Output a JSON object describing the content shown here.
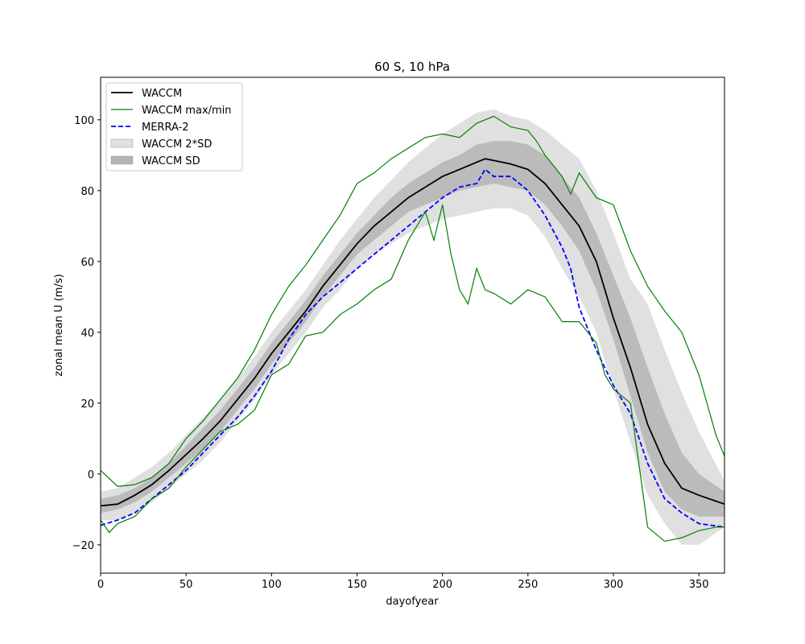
{
  "chart_data": {
    "type": "line",
    "title": "60 S, 10 hPa",
    "xlabel": "dayofyear",
    "ylabel": "zonal mean U (m/s)",
    "xlim": [
      0,
      365
    ],
    "ylim": [
      -28,
      112
    ],
    "xticks": [
      0,
      50,
      100,
      150,
      200,
      250,
      300,
      350
    ],
    "yticks": [
      -20,
      0,
      20,
      40,
      60,
      80,
      100
    ],
    "grid": false,
    "legend_position": "top-left",
    "series": [
      {
        "name": "WACCM",
        "style": "solid",
        "color": "#000000",
        "x": [
          0,
          10,
          20,
          30,
          40,
          50,
          60,
          70,
          80,
          90,
          100,
          110,
          120,
          130,
          140,
          150,
          160,
          170,
          180,
          190,
          200,
          210,
          220,
          225,
          230,
          240,
          250,
          260,
          270,
          280,
          290,
          300,
          310,
          320,
          330,
          340,
          350,
          365
        ],
        "y": [
          -9,
          -8.5,
          -6,
          -3,
          1,
          5.5,
          10,
          15,
          21,
          27,
          34,
          40,
          46,
          53,
          59,
          65,
          70,
          74,
          78,
          81,
          84,
          86,
          88,
          89,
          88.5,
          87.5,
          86,
          82,
          76,
          70,
          60,
          44,
          30,
          14,
          3,
          -4,
          -6,
          -8.5
        ]
      },
      {
        "name": "MERRA-2",
        "style": "dashed",
        "color": "#0000ff",
        "x": [
          0,
          10,
          20,
          30,
          40,
          50,
          60,
          70,
          80,
          90,
          100,
          110,
          120,
          130,
          140,
          150,
          160,
          170,
          180,
          190,
          200,
          210,
          220,
          225,
          230,
          240,
          250,
          260,
          270,
          275,
          280,
          290,
          300,
          310,
          320,
          330,
          340,
          350,
          365
        ],
        "y": [
          -14.5,
          -13,
          -11,
          -7,
          -3,
          1,
          6,
          11,
          16,
          22,
          29,
          38,
          45,
          50,
          54,
          58,
          62,
          66,
          70,
          74,
          78,
          81,
          82,
          86,
          84,
          84,
          80,
          73,
          64,
          58,
          47,
          35,
          25,
          17,
          3,
          -7,
          -11,
          -14,
          -15
        ]
      },
      {
        "name": "WACCM max/min",
        "style": "solid",
        "color": "#008000",
        "x": [
          0,
          10,
          20,
          30,
          40,
          50,
          60,
          70,
          80,
          90,
          100,
          110,
          120,
          130,
          140,
          150,
          160,
          170,
          180,
          190,
          200,
          210,
          220,
          230,
          240,
          250,
          255,
          260,
          270,
          275,
          280,
          290,
          300,
          310,
          320,
          330,
          340,
          350,
          360,
          365
        ],
        "y": [
          1,
          -3.5,
          -3,
          -1,
          3,
          10,
          15,
          21,
          27,
          35,
          45,
          53,
          59,
          66,
          73,
          82,
          85,
          89,
          92,
          95,
          96,
          95,
          99,
          101,
          98,
          97,
          94,
          90,
          84,
          79,
          85,
          78,
          76,
          63,
          53,
          46,
          40,
          28,
          11,
          5
        ]
      },
      {
        "name": "WACCM min",
        "style": "solid",
        "color": "#008000",
        "x": [
          0,
          5,
          10,
          20,
          30,
          40,
          50,
          60,
          70,
          80,
          90,
          100,
          110,
          120,
          130,
          140,
          150,
          160,
          170,
          180,
          190,
          195,
          200,
          205,
          210,
          215,
          220,
          225,
          230,
          240,
          250,
          260,
          270,
          280,
          290,
          295,
          300,
          310,
          320,
          330,
          340,
          350,
          360,
          365
        ],
        "y": [
          -13,
          -16.5,
          -14,
          -12,
          -7,
          -4,
          2,
          7,
          12,
          14,
          18,
          28,
          31,
          39,
          40,
          45,
          48,
          52,
          55,
          66,
          74,
          66,
          76,
          62,
          52,
          48,
          58,
          52,
          51,
          48,
          52,
          50,
          43,
          43,
          37,
          28,
          24,
          20,
          -15,
          -19,
          -18,
          -16,
          -15,
          -15
        ]
      }
    ],
    "bands": [
      {
        "name": "WACCM 2*SD",
        "color": "#e0e0e0",
        "x": [
          0,
          10,
          20,
          30,
          40,
          50,
          60,
          70,
          80,
          90,
          100,
          110,
          120,
          130,
          140,
          150,
          160,
          170,
          180,
          190,
          200,
          210,
          220,
          230,
          240,
          250,
          260,
          270,
          280,
          290,
          300,
          310,
          320,
          330,
          340,
          350,
          365
        ],
        "lower": [
          -13,
          -13,
          -11,
          -8,
          -4,
          0,
          4,
          9,
          15,
          21,
          28,
          34,
          40,
          47,
          52,
          58,
          62,
          65,
          68,
          70,
          72,
          73,
          74,
          75,
          75,
          73,
          67,
          58,
          50,
          40,
          24,
          9,
          -6,
          -14,
          -20,
          -20,
          -15
        ],
        "upper": [
          -5,
          -4,
          -1,
          2,
          6,
          11,
          16,
          21,
          27,
          33,
          40,
          46,
          52,
          59,
          66,
          72,
          78,
          83,
          88,
          92,
          96,
          99,
          102,
          103,
          101,
          100,
          97,
          93,
          89,
          80,
          68,
          55,
          48,
          35,
          23,
          12,
          -2
        ]
      },
      {
        "name": "WACCM SD",
        "color": "#b4b4b4",
        "x": [
          0,
          10,
          20,
          30,
          40,
          50,
          60,
          70,
          80,
          90,
          100,
          110,
          120,
          130,
          140,
          150,
          160,
          170,
          180,
          190,
          200,
          210,
          220,
          230,
          240,
          250,
          260,
          270,
          280,
          290,
          300,
          310,
          320,
          330,
          340,
          350,
          365
        ],
        "lower": [
          -11,
          -10,
          -8,
          -5,
          -1,
          3,
          7,
          12,
          18,
          24,
          31,
          37,
          43,
          50,
          56,
          62,
          66,
          70,
          74,
          76,
          78,
          80,
          81,
          82,
          81,
          80,
          76,
          70,
          63,
          52,
          38,
          22,
          6,
          -5,
          -10,
          -12,
          -12
        ],
        "upper": [
          -7,
          -6,
          -4,
          -1,
          3,
          8,
          13,
          18,
          24,
          30,
          37,
          43,
          49,
          56,
          62,
          68,
          73,
          78,
          82,
          85,
          88,
          90,
          93,
          94,
          94,
          93,
          90,
          84,
          78,
          68,
          56,
          44,
          30,
          17,
          6,
          0,
          -5
        ]
      }
    ],
    "legend": [
      "WACCM",
      "WACCM max/min",
      "MERRA-2",
      "WACCM 2*SD",
      "WACCM SD"
    ]
  }
}
